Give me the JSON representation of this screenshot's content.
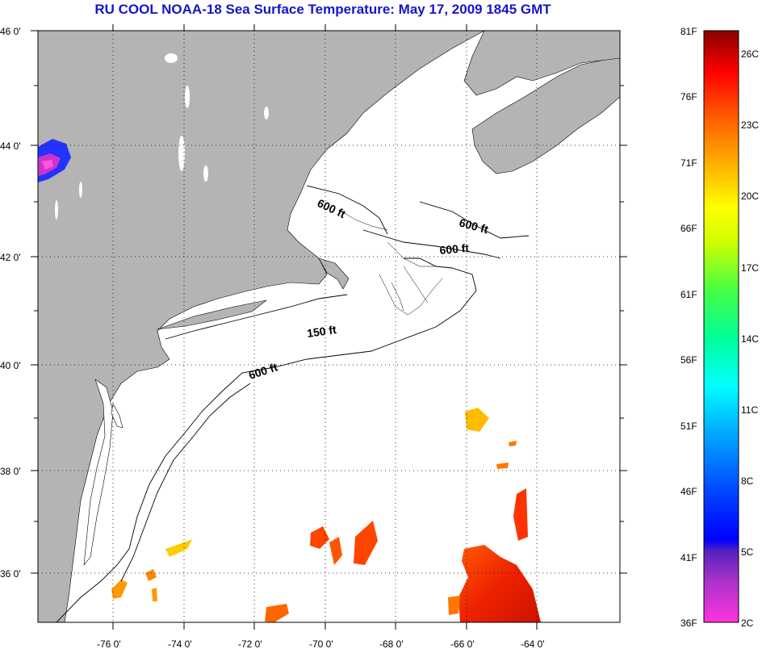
{
  "title": "RU COOL  NOAA-18  Sea Surface Temperature:  May 17, 2009 1845 GMT",
  "map": {
    "lat_labels": [
      "46 0'",
      "44 0'",
      "42 0'",
      "40 0'",
      "38 0'",
      "36 0'"
    ],
    "lon_labels": [
      "-76 0'",
      "-74 0'",
      "-72 0'",
      "-70 0'",
      "-68 0'",
      "-66 0'",
      "-64 0'"
    ],
    "contour_labels": [
      "600 ft",
      "600 ft",
      "600 ft",
      "150 ft",
      "600 ft"
    ],
    "land_color": "#b4b4b4",
    "ocean_color": "#ffffff"
  },
  "colorbar": {
    "fahrenheit_labels": [
      "81F",
      "76F",
      "71F",
      "66F",
      "61F",
      "56F",
      "51F",
      "46F",
      "41F",
      "36F"
    ],
    "celsius_labels": [
      "26C",
      "23C",
      "20C",
      "17C",
      "14C",
      "11C",
      "8C",
      "5C",
      "2C"
    ],
    "range_f": [
      36,
      81
    ],
    "colors": [
      "#ff33cc",
      "#9933cc",
      "#0000ff",
      "#0080ff",
      "#00ffff",
      "#00ff80",
      "#80ff00",
      "#ffff00",
      "#ffaa00",
      "#ff5500",
      "#ff0000",
      "#8b0000"
    ]
  }
}
